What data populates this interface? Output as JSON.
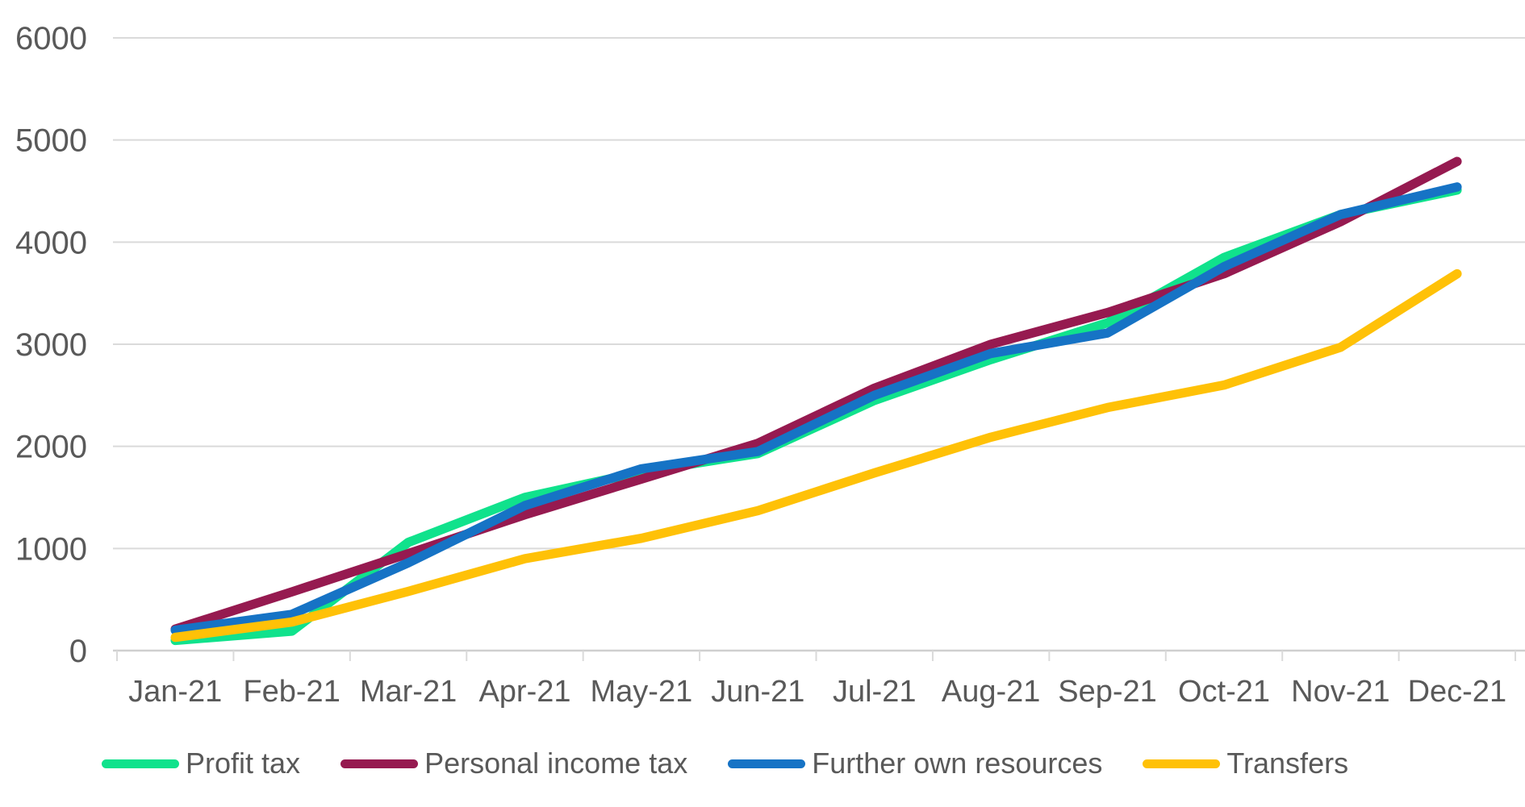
{
  "chart_data": {
    "type": "line",
    "title": "",
    "xlabel": "",
    "ylabel": "",
    "ylim": [
      0,
      6000
    ],
    "y_tick_step": 1000,
    "y_ticks": [
      "0",
      "1000",
      "2000",
      "3000",
      "4000",
      "5000",
      "6000"
    ],
    "categories": [
      "Jan-21",
      "Feb-21",
      "Mar-21",
      "Apr-21",
      "May-21",
      "Jun-21",
      "Jul-21",
      "Aug-21",
      "Sep-21",
      "Oct-21",
      "Nov-21",
      "Dec-21"
    ],
    "grid": true,
    "legend_position": "bottom",
    "series": [
      {
        "name": "Profit tax",
        "color": "#10E28C",
        "values": [
          100,
          190,
          1060,
          1500,
          1750,
          1930,
          2450,
          2850,
          3210,
          3850,
          4270,
          4510
        ]
      },
      {
        "name": "Personal income tax",
        "color": "#961A50",
        "values": [
          210,
          575,
          950,
          1330,
          1680,
          2030,
          2570,
          3000,
          3310,
          3690,
          4200,
          4790
        ]
      },
      {
        "name": "Further own resources",
        "color": "#1673C5",
        "values": [
          200,
          355,
          860,
          1420,
          1780,
          1950,
          2500,
          2910,
          3110,
          3760,
          4270,
          4540
        ]
      },
      {
        "name": "Transfers",
        "color": "#FFC107",
        "values": [
          130,
          280,
          580,
          900,
          1100,
          1370,
          1740,
          2090,
          2380,
          2600,
          2970,
          3690
        ]
      }
    ],
    "colors": {
      "gridline": "#DADADA",
      "axis_line": "#CFCFCF",
      "tick_mark": "#DADADA",
      "label_text": "#595959"
    }
  }
}
